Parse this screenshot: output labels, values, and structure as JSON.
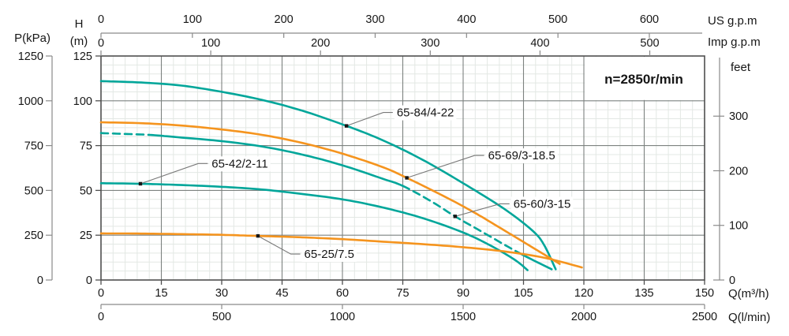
{
  "colors": {
    "teal": "#00A69A",
    "orange": "#F5941E",
    "minor_grid": "#e3e8e4",
    "major_grid": "#7d8280",
    "frame": "#4f4f4f",
    "axis_line": "#8a8a8a",
    "leader": "#787878",
    "text": "#161616"
  },
  "chart_data": {
    "type": "line",
    "speed_annotation": "n=2850r/min",
    "x_axes": {
      "q_m3h": {
        "title": "Q(m³/h)",
        "ticks": [
          0,
          15,
          30,
          45,
          60,
          75,
          90,
          105,
          120,
          135,
          150
        ],
        "range": [
          0,
          150
        ]
      },
      "q_lmin": {
        "title": "Q(l/min)",
        "ticks": [
          0,
          500,
          1000,
          1500,
          2000,
          2500
        ],
        "range": [
          0,
          2500
        ]
      },
      "us_gpm": {
        "title": "US g.p.m",
        "ticks": [
          0,
          100,
          200,
          300,
          400,
          500,
          600
        ]
      },
      "imp_gpm": {
        "title": "Imp g.p.m",
        "ticks": [
          0,
          100,
          200,
          300,
          400,
          500
        ]
      }
    },
    "y_axes": {
      "h_m": {
        "title_line1": "H",
        "title_line2": "(m)",
        "ticks": [
          0,
          25,
          50,
          75,
          100,
          125
        ],
        "range": [
          0,
          125
        ]
      },
      "p_kpa": {
        "title": "P(kPa)",
        "ticks": [
          0,
          250,
          500,
          750,
          1000,
          1250
        ]
      },
      "feet": {
        "title": "feet",
        "ticks": [
          0,
          100,
          200,
          300
        ]
      }
    },
    "grid": {
      "minor_step_q": 3,
      "minor_step_h": 5,
      "major_step_q": 15,
      "major_step_h": 25
    },
    "series": [
      {
        "name": "65-84/4-22",
        "color": "teal",
        "points": [
          [
            0,
            111
          ],
          [
            10,
            110.2
          ],
          [
            20,
            108.5
          ],
          [
            30,
            105
          ],
          [
            40,
            100.5
          ],
          [
            50,
            94.5
          ],
          [
            61,
            86
          ],
          [
            70,
            78
          ],
          [
            80,
            67
          ],
          [
            90,
            54
          ],
          [
            100,
            40
          ],
          [
            107,
            28
          ],
          [
            110,
            20
          ],
          [
            113,
            6
          ]
        ]
      },
      {
        "name": "65-69/3-18.5",
        "color": "orange",
        "points": [
          [
            0,
            88
          ],
          [
            10,
            87.5
          ],
          [
            20,
            86.2
          ],
          [
            30,
            84
          ],
          [
            40,
            81
          ],
          [
            50,
            76.5
          ],
          [
            60,
            70.5
          ],
          [
            70,
            63
          ],
          [
            76,
            57
          ],
          [
            85,
            47
          ],
          [
            92.5,
            38
          ],
          [
            100,
            28
          ],
          [
            107,
            18.5
          ],
          [
            114,
            9
          ]
        ]
      },
      {
        "name": "65-60/3-15",
        "color": "teal",
        "dash_segments": [
          [
            0,
            12
          ],
          [
            75,
            104
          ]
        ],
        "points": [
          [
            0,
            82
          ],
          [
            6,
            81.5
          ],
          [
            12,
            81
          ],
          [
            20,
            79.5
          ],
          [
            30,
            77.5
          ],
          [
            40,
            74.5
          ],
          [
            50,
            70
          ],
          [
            60,
            64
          ],
          [
            70,
            56.5
          ],
          [
            75,
            52.5
          ],
          [
            82,
            44
          ],
          [
            88,
            35.5
          ],
          [
            95,
            26.5
          ],
          [
            104,
            15
          ],
          [
            112,
            6
          ]
        ]
      },
      {
        "name": "65-42/2-11",
        "color": "teal",
        "points": [
          [
            0,
            54
          ],
          [
            9.8,
            53.7
          ],
          [
            20,
            53
          ],
          [
            30,
            52
          ],
          [
            40,
            50.5
          ],
          [
            50,
            48
          ],
          [
            60,
            45
          ],
          [
            70,
            40.5
          ],
          [
            80,
            34.5
          ],
          [
            90,
            26.5
          ],
          [
            97,
            19
          ],
          [
            103,
            11
          ],
          [
            106,
            5.5
          ]
        ]
      },
      {
        "name": "65-25/7.5",
        "color": "orange",
        "points": [
          [
            0,
            26
          ],
          [
            10,
            25.9
          ],
          [
            20,
            25.6
          ],
          [
            30,
            25.2
          ],
          [
            39,
            24.6
          ],
          [
            50,
            23.8
          ],
          [
            60,
            22.8
          ],
          [
            70,
            21.4
          ],
          [
            80,
            20
          ],
          [
            90,
            18.3
          ],
          [
            100,
            16
          ],
          [
            110,
            12.5
          ],
          [
            119.5,
            7
          ]
        ]
      }
    ],
    "annotations": [
      {
        "text": "65-84/4-22",
        "dot_q": 61,
        "label_q": 73.5,
        "label_h": 93.5
      },
      {
        "text": "65-69/3-18.5",
        "dot_q": 76,
        "label_q": 96.2,
        "label_h": 69.5
      },
      {
        "text": "65-42/2-11",
        "dot_q": 9.8,
        "label_q": 27.5,
        "label_h": 65.0
      },
      {
        "text": "65-60/3-15",
        "dot_q": 88,
        "label_q": 102.5,
        "label_h": 42.5
      },
      {
        "text": "65-25/7.5",
        "dot_q": 39,
        "label_q": 50.5,
        "label_h": 14.5
      }
    ]
  }
}
